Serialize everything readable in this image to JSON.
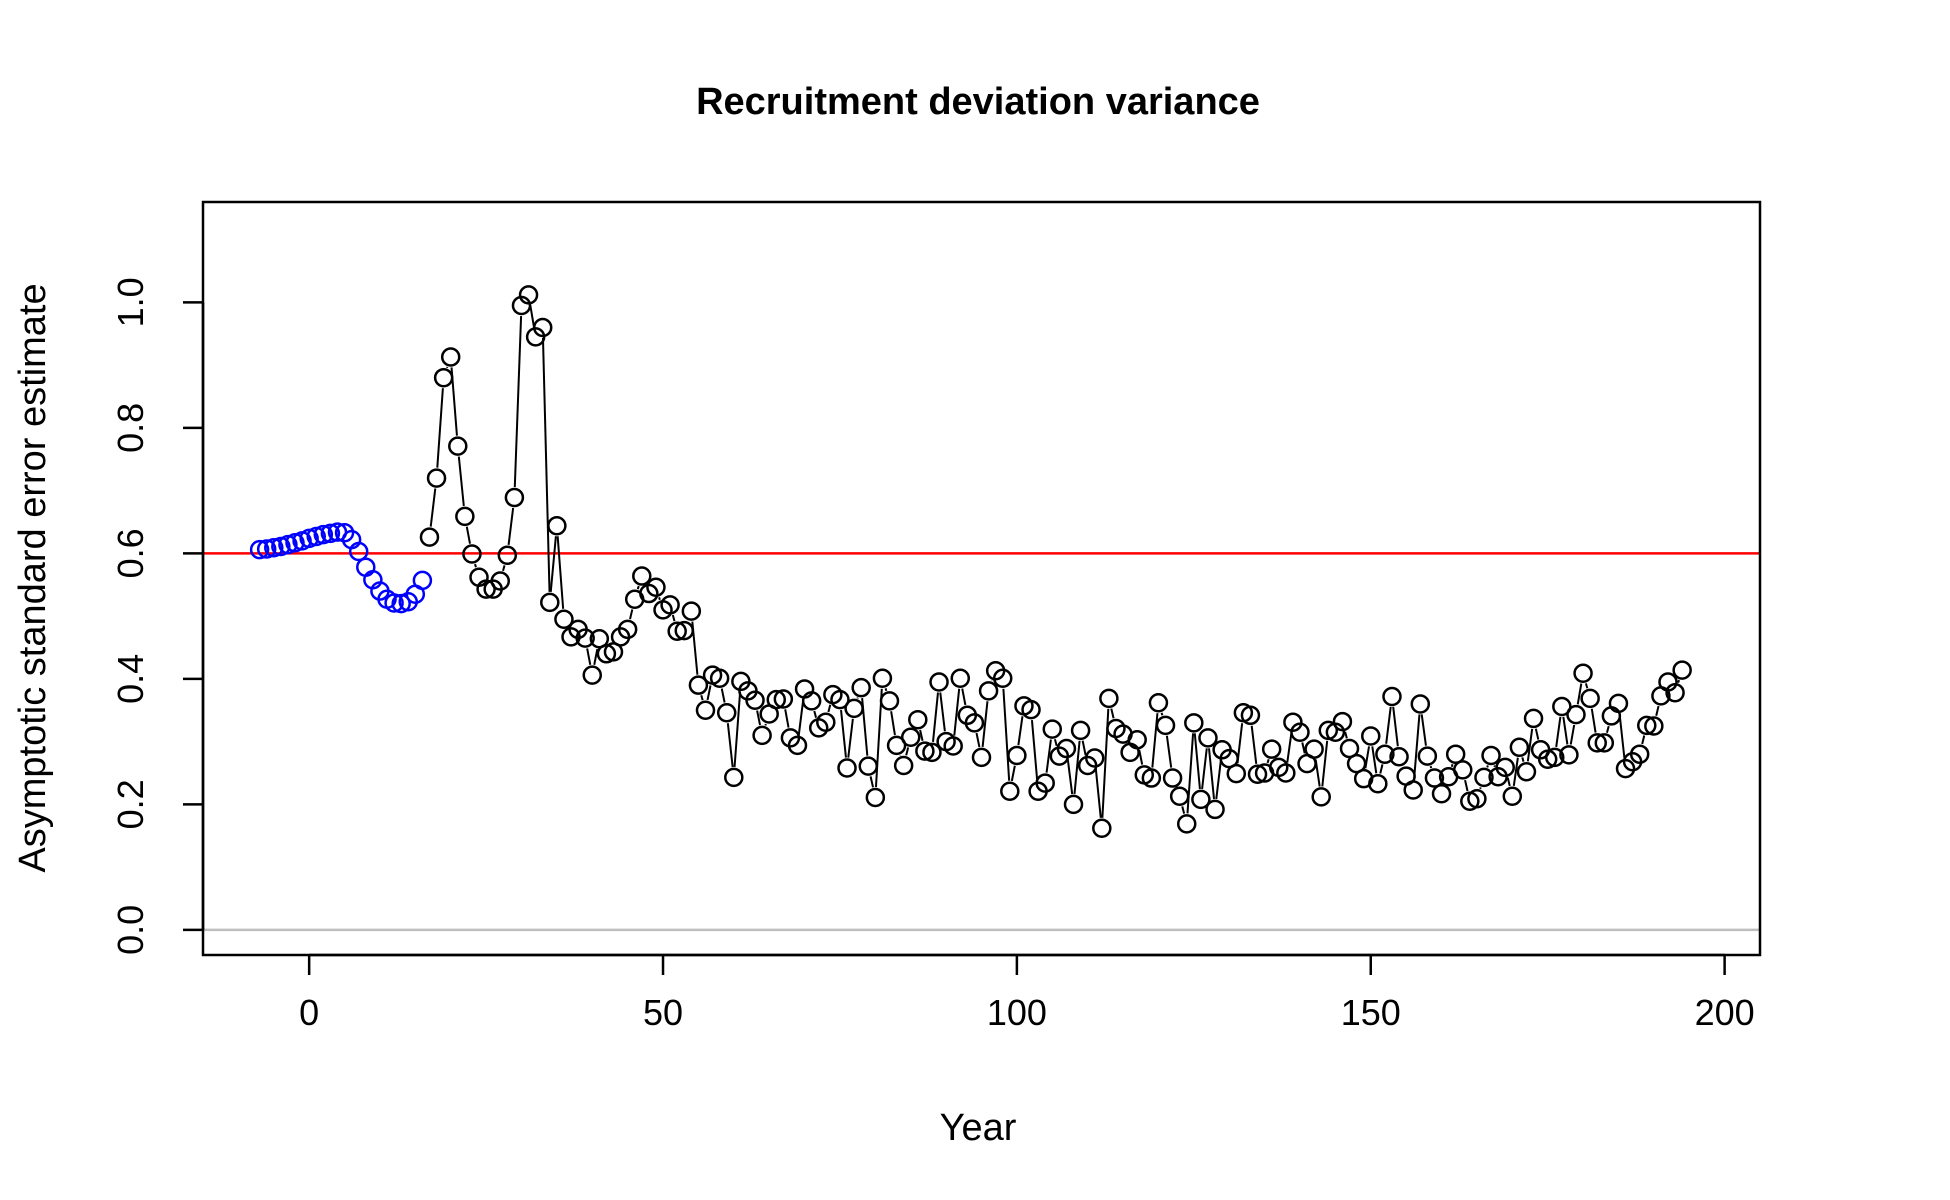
{
  "chart_data": {
    "type": "scatter",
    "title": "Recruitment deviation variance",
    "xlabel": "Year",
    "ylabel": "Asymptotic standard error estimate",
    "xlim": [
      -15,
      205
    ],
    "ylim": [
      -0.04,
      1.16
    ],
    "x_ticks": [
      0,
      50,
      100,
      150,
      200
    ],
    "x_tick_labels": [
      "0",
      "50",
      "100",
      "150",
      "200"
    ],
    "y_ticks": [
      0.0,
      0.2,
      0.4,
      0.6,
      0.8,
      1.0
    ],
    "y_tick_labels": [
      "0.0",
      "0.2",
      "0.4",
      "0.6",
      "0.8",
      "1.0"
    ],
    "reference_lines": [
      {
        "y": 0.6,
        "color": "#ff0000"
      },
      {
        "y": 0.0,
        "color": "#bebebe"
      }
    ],
    "colors": {
      "early": "#0000ff",
      "main": "#000000"
    },
    "connecting_lines": true,
    "series": [
      {
        "color": "#0000ff",
        "x": [
          -7,
          -6,
          -5,
          -4,
          -3,
          -2,
          -1,
          0,
          1,
          2,
          3,
          4,
          5,
          6,
          7,
          8,
          9,
          10,
          11,
          12,
          13,
          14,
          15,
          16
        ],
        "y": [
          0.606,
          0.607,
          0.609,
          0.611,
          0.614,
          0.617,
          0.62,
          0.624,
          0.627,
          0.63,
          0.632,
          0.634,
          0.633,
          0.622,
          0.603,
          0.578,
          0.558,
          0.54,
          0.527,
          0.521,
          0.52,
          0.523,
          0.535,
          0.557
        ]
      },
      {
        "color": "#000000",
        "x": [
          17,
          18,
          19,
          20,
          21,
          22,
          23,
          24,
          25,
          26,
          27,
          28,
          29,
          30,
          31,
          32,
          33,
          34,
          35,
          36,
          37,
          38,
          39,
          40,
          41,
          42,
          43,
          44,
          45,
          46,
          47,
          48,
          49,
          50,
          51,
          52,
          53,
          54,
          55,
          56,
          57,
          58,
          59,
          60,
          61,
          62,
          63,
          64,
          65,
          66,
          67,
          68,
          69,
          70,
          71,
          72,
          73,
          74,
          75,
          76,
          77,
          78,
          79,
          80,
          81,
          82,
          83,
          84,
          85,
          86,
          87,
          88,
          89,
          90,
          91,
          92,
          93,
          94,
          95,
          96,
          97,
          98,
          99,
          100,
          101,
          102,
          103,
          104,
          105,
          106,
          107,
          108,
          109,
          110,
          111,
          112,
          113,
          114,
          115,
          116,
          117,
          118,
          119,
          120,
          121,
          122,
          123,
          124,
          125,
          126,
          127,
          128,
          129,
          130,
          131,
          132,
          133,
          134,
          135,
          136,
          137,
          138,
          139,
          140,
          141,
          142,
          143,
          144,
          145,
          146,
          147,
          148,
          149,
          150,
          151,
          152,
          153,
          154,
          155,
          156,
          157,
          158,
          159,
          160,
          161,
          162,
          163,
          164,
          165,
          166,
          167,
          168,
          169,
          170,
          171,
          172,
          173,
          174,
          175,
          176,
          177,
          178,
          179,
          180,
          181,
          182,
          183,
          184,
          185,
          186,
          187,
          188,
          189,
          190,
          191,
          192,
          193,
          194
        ],
        "y": [
          0.626,
          0.72,
          0.88,
          0.913,
          0.771,
          0.659,
          0.599,
          0.562,
          0.543,
          0.543,
          0.556,
          0.597,
          0.689,
          0.995,
          1.012,
          0.945,
          0.96,
          0.522,
          0.644,
          0.495,
          0.467,
          0.479,
          0.465,
          0.406,
          0.464,
          0.44,
          0.443,
          0.467,
          0.479,
          0.527,
          0.564,
          0.536,
          0.546,
          0.51,
          0.518,
          0.476,
          0.477,
          0.508,
          0.39,
          0.35,
          0.406,
          0.401,
          0.346,
          0.243,
          0.396,
          0.381,
          0.366,
          0.31,
          0.344,
          0.367,
          0.368,
          0.306,
          0.294,
          0.384,
          0.365,
          0.322,
          0.331,
          0.375,
          0.367,
          0.258,
          0.353,
          0.386,
          0.261,
          0.211,
          0.401,
          0.365,
          0.294,
          0.262,
          0.307,
          0.335,
          0.285,
          0.283,
          0.395,
          0.3,
          0.293,
          0.401,
          0.342,
          0.33,
          0.275,
          0.381,
          0.413,
          0.401,
          0.221,
          0.278,
          0.357,
          0.351,
          0.221,
          0.234,
          0.32,
          0.277,
          0.289,
          0.2,
          0.318,
          0.262,
          0.274,
          0.162,
          0.369,
          0.321,
          0.312,
          0.283,
          0.303,
          0.247,
          0.242,
          0.362,
          0.326,
          0.242,
          0.213,
          0.169,
          0.33,
          0.208,
          0.306,
          0.192,
          0.287,
          0.273,
          0.249,
          0.346,
          0.342,
          0.248,
          0.25,
          0.288,
          0.259,
          0.25,
          0.331,
          0.315,
          0.265,
          0.288,
          0.212,
          0.318,
          0.315,
          0.332,
          0.289,
          0.265,
          0.241,
          0.309,
          0.233,
          0.28,
          0.372,
          0.276,
          0.245,
          0.223,
          0.36,
          0.277,
          0.242,
          0.217,
          0.244,
          0.28,
          0.255,
          0.205,
          0.209,
          0.243,
          0.278,
          0.244,
          0.259,
          0.213,
          0.291,
          0.252,
          0.337,
          0.287,
          0.272,
          0.275,
          0.356,
          0.279,
          0.343,
          0.409,
          0.369,
          0.298,
          0.298,
          0.341,
          0.361,
          0.257,
          0.268,
          0.28,
          0.326,
          0.325,
          0.373,
          0.395,
          0.378,
          0.414
        ]
      }
    ]
  }
}
